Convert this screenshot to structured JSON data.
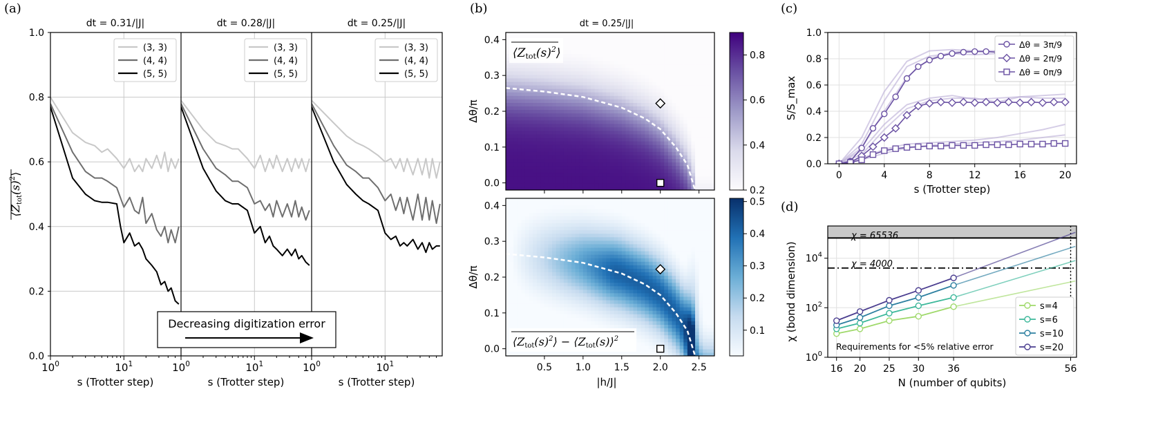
{
  "panel_labels": [
    "(a)",
    "(b)",
    "(c)",
    "(d)"
  ],
  "chart_data": [
    {
      "id": "a",
      "type": "line",
      "x_scale": "log",
      "xlim": [
        1,
        60
      ],
      "ylim": [
        0.0,
        1.0
      ],
      "ylabel": "⟨Z_tot(s)²⟩",
      "xlabel": "s (Trotter step)",
      "yticks": [
        "0.0",
        "0.2",
        "0.4",
        "0.6",
        "0.8",
        "1.0"
      ],
      "xtick_major": [
        "10^0",
        "10^1"
      ],
      "arrow_text": "Decreasing digitization error",
      "legend": [
        "(3, 3)",
        "(4, 4)",
        "(5, 5)"
      ],
      "series_colors": [
        "#c8c8c8",
        "#6e6e6e",
        "#000000"
      ],
      "subplots": [
        {
          "title": "dt = 0.31/|J|",
          "series": [
            {
              "name": "(3, 3)",
              "x": [
                1,
                2,
                3,
                4,
                5,
                6,
                8,
                10,
                12,
                14,
                16,
                18,
                20,
                24,
                28,
                32,
                36,
                40,
                44,
                50,
                56
              ],
              "y": [
                0.8,
                0.69,
                0.66,
                0.65,
                0.63,
                0.64,
                0.61,
                0.58,
                0.61,
                0.57,
                0.59,
                0.57,
                0.61,
                0.58,
                0.62,
                0.58,
                0.63,
                0.57,
                0.61,
                0.58,
                0.61
              ]
            },
            {
              "name": "(4, 4)",
              "x": [
                1,
                2,
                3,
                4,
                5,
                6,
                8,
                10,
                12,
                14,
                16,
                18,
                20,
                24,
                28,
                32,
                36,
                40,
                44,
                50,
                56
              ],
              "y": [
                0.78,
                0.63,
                0.57,
                0.55,
                0.55,
                0.54,
                0.52,
                0.46,
                0.49,
                0.45,
                0.44,
                0.49,
                0.41,
                0.44,
                0.39,
                0.37,
                0.4,
                0.35,
                0.39,
                0.35,
                0.4
              ]
            },
            {
              "name": "(5, 5)",
              "x": [
                1,
                2,
                3,
                4,
                5,
                6,
                8,
                9,
                10,
                12,
                14,
                16,
                18,
                20,
                24,
                28,
                32,
                36,
                40,
                44,
                50,
                56
              ],
              "y": [
                0.77,
                0.55,
                0.5,
                0.48,
                0.475,
                0.475,
                0.47,
                0.4,
                0.35,
                0.38,
                0.34,
                0.35,
                0.33,
                0.3,
                0.28,
                0.26,
                0.22,
                0.23,
                0.2,
                0.21,
                0.17,
                0.16
              ]
            }
          ]
        },
        {
          "title": "dt = 0.28/|J|",
          "series": [
            {
              "name": "(3, 3)",
              "x": [
                1,
                2,
                3,
                4,
                5,
                6,
                8,
                10,
                12,
                14,
                16,
                18,
                20,
                24,
                28,
                32,
                36,
                40,
                44,
                50,
                56
              ],
              "y": [
                0.79,
                0.7,
                0.66,
                0.65,
                0.64,
                0.64,
                0.61,
                0.58,
                0.62,
                0.57,
                0.61,
                0.58,
                0.62,
                0.57,
                0.61,
                0.57,
                0.61,
                0.58,
                0.61,
                0.57,
                0.61
              ]
            },
            {
              "name": "(4, 4)",
              "x": [
                1,
                2,
                3,
                4,
                5,
                6,
                8,
                10,
                12,
                14,
                16,
                18,
                20,
                24,
                28,
                32,
                36,
                40,
                44,
                50,
                56
              ],
              "y": [
                0.78,
                0.64,
                0.58,
                0.56,
                0.54,
                0.54,
                0.52,
                0.47,
                0.48,
                0.45,
                0.47,
                0.43,
                0.48,
                0.43,
                0.47,
                0.43,
                0.48,
                0.43,
                0.46,
                0.42,
                0.45
              ]
            },
            {
              "name": "(5, 5)",
              "x": [
                1,
                2,
                3,
                4,
                5,
                6,
                8,
                10,
                12,
                14,
                16,
                18,
                20,
                24,
                28,
                32,
                36,
                40,
                44,
                50,
                56
              ],
              "y": [
                0.77,
                0.58,
                0.51,
                0.48,
                0.47,
                0.47,
                0.45,
                0.38,
                0.4,
                0.35,
                0.37,
                0.34,
                0.33,
                0.31,
                0.33,
                0.31,
                0.33,
                0.3,
                0.31,
                0.29,
                0.28
              ]
            }
          ]
        },
        {
          "title": "dt = 0.25/|J|",
          "series": [
            {
              "name": "(3, 3)",
              "x": [
                1,
                2,
                3,
                4,
                5,
                6,
                8,
                10,
                12,
                14,
                16,
                18,
                20,
                24,
                28,
                32,
                36,
                40,
                44,
                50,
                56
              ],
              "y": [
                0.79,
                0.72,
                0.68,
                0.66,
                0.65,
                0.64,
                0.62,
                0.6,
                0.61,
                0.58,
                0.61,
                0.57,
                0.61,
                0.56,
                0.61,
                0.56,
                0.61,
                0.55,
                0.61,
                0.55,
                0.6
              ]
            },
            {
              "name": "(4, 4)",
              "x": [
                1,
                2,
                3,
                4,
                5,
                6,
                8,
                10,
                12,
                14,
                16,
                18,
                20,
                24,
                28,
                32,
                36,
                40,
                44,
                50,
                56
              ],
              "y": [
                0.78,
                0.65,
                0.59,
                0.57,
                0.55,
                0.55,
                0.52,
                0.48,
                0.5,
                0.45,
                0.49,
                0.44,
                0.49,
                0.42,
                0.5,
                0.42,
                0.49,
                0.42,
                0.48,
                0.41,
                0.47
              ]
            },
            {
              "name": "(5, 5)",
              "x": [
                1,
                2,
                3,
                4,
                5,
                6,
                8,
                10,
                12,
                14,
                16,
                18,
                20,
                24,
                28,
                32,
                36,
                40,
                44,
                50,
                56
              ],
              "y": [
                0.77,
                0.6,
                0.53,
                0.5,
                0.48,
                0.47,
                0.45,
                0.38,
                0.36,
                0.37,
                0.34,
                0.35,
                0.34,
                0.36,
                0.33,
                0.35,
                0.32,
                0.35,
                0.33,
                0.34,
                0.34
              ]
            }
          ]
        }
      ]
    },
    {
      "id": "b",
      "type": "heatmap",
      "title": "dt = 0.25/|J|",
      "xlabel": "|h/J|",
      "ylabel": "Δθ/π",
      "xlim": [
        0.0,
        2.7
      ],
      "ylim": [
        -0.02,
        0.42
      ],
      "xticks": [
        "0.5",
        "1.0",
        "1.5",
        "2.0",
        "2.5"
      ],
      "yticks": [
        "0.0",
        "0.1",
        "0.2",
        "0.3",
        "0.4"
      ],
      "boundary_curve": {
        "x": [
          0.0,
          0.5,
          1.0,
          1.5,
          1.8,
          2.0,
          2.2,
          2.35,
          2.45
        ],
        "y": [
          0.265,
          0.255,
          0.24,
          0.21,
          0.18,
          0.15,
          0.1,
          0.05,
          -0.02
        ]
      },
      "markers": [
        {
          "shape": "diamond",
          "x": 2.0,
          "y": 0.222
        },
        {
          "shape": "square",
          "x": 2.0,
          "y": 0.0
        }
      ],
      "top": {
        "label": "⟨Z_tot(s)²⟩ (time-averaged)",
        "colorbar_ticks": [
          "0.2",
          "0.4",
          "0.6",
          "0.8"
        ],
        "colorbar_range": [
          0.2,
          0.9
        ]
      },
      "bottom": {
        "label": "⟨Z_tot(s)²⟩ − ⟨Z_tot(s)⟩² (time-averaged)",
        "colorbar_ticks": [
          "0.1",
          "0.2",
          "0.3",
          "0.4",
          "0.5"
        ],
        "colorbar_range": [
          0.02,
          0.51
        ]
      }
    },
    {
      "id": "c",
      "type": "line",
      "xlabel": "s (Trotter step)",
      "ylabel": "S/S_max",
      "xlim": [
        -1,
        21
      ],
      "ylim": [
        0.0,
        1.0
      ],
      "xticks": [
        "0",
        "4",
        "8",
        "12",
        "16",
        "20"
      ],
      "yticks": [
        "0.0",
        "0.2",
        "0.4",
        "0.6",
        "0.8",
        "1.0"
      ],
      "legend": [
        "Δθ = 3π/9",
        "Δθ = 2π/9",
        "Δθ = 0π/9"
      ],
      "series": [
        {
          "name": "Δθ = 3π/9",
          "marker": "circle",
          "x": [
            0,
            1,
            2,
            3,
            4,
            5,
            6,
            7,
            8,
            9,
            10,
            11,
            12,
            13,
            14,
            15,
            16,
            17,
            18,
            19,
            20
          ],
          "y": [
            0.0,
            0.02,
            0.12,
            0.27,
            0.38,
            0.51,
            0.65,
            0.74,
            0.79,
            0.82,
            0.84,
            0.85,
            0.855,
            0.855,
            0.85,
            0.845,
            0.85,
            0.845,
            0.845,
            0.85,
            0.85
          ]
        },
        {
          "name": "Δθ = 2π/9",
          "marker": "diamond",
          "x": [
            0,
            1,
            2,
            3,
            4,
            5,
            6,
            7,
            8,
            9,
            10,
            11,
            12,
            13,
            14,
            15,
            16,
            17,
            18,
            19,
            20
          ],
          "y": [
            0.0,
            0.01,
            0.06,
            0.13,
            0.2,
            0.27,
            0.37,
            0.44,
            0.46,
            0.47,
            0.465,
            0.47,
            0.465,
            0.47,
            0.465,
            0.47,
            0.465,
            0.47,
            0.465,
            0.47,
            0.47
          ]
        },
        {
          "name": "Δθ = 0π/9",
          "marker": "square",
          "x": [
            0,
            1,
            2,
            3,
            4,
            5,
            6,
            7,
            8,
            9,
            10,
            11,
            12,
            13,
            14,
            15,
            16,
            17,
            18,
            19,
            20
          ],
          "y": [
            0.0,
            0.01,
            0.03,
            0.07,
            0.1,
            0.115,
            0.125,
            0.13,
            0.135,
            0.135,
            0.14,
            0.14,
            0.14,
            0.145,
            0.145,
            0.145,
            0.15,
            0.15,
            0.15,
            0.155,
            0.155
          ]
        }
      ],
      "faint_series": [
        {
          "x": [
            0,
            2,
            4,
            6,
            8,
            10,
            12,
            14,
            16,
            18,
            20
          ],
          "y": [
            0,
            0.15,
            0.48,
            0.74,
            0.82,
            0.84,
            0.83,
            0.84,
            0.82,
            0.8,
            0.79
          ]
        },
        {
          "x": [
            0,
            2,
            4,
            6,
            8,
            10,
            12,
            14,
            16,
            18,
            20
          ],
          "y": [
            0,
            0.2,
            0.55,
            0.78,
            0.86,
            0.87,
            0.86,
            0.86,
            0.85,
            0.85,
            0.86
          ]
        },
        {
          "x": [
            0,
            2,
            4,
            6,
            8,
            10,
            12,
            14,
            16,
            18,
            20
          ],
          "y": [
            0,
            0.12,
            0.4,
            0.66,
            0.8,
            0.85,
            0.86,
            0.85,
            0.86,
            0.85,
            0.85
          ]
        },
        {
          "x": [
            0,
            2,
            4,
            6,
            8,
            10,
            12,
            14,
            16,
            18,
            20
          ],
          "y": [
            0,
            0.1,
            0.3,
            0.45,
            0.5,
            0.52,
            0.49,
            0.5,
            0.51,
            0.5,
            0.5
          ]
        },
        {
          "x": [
            0,
            2,
            4,
            6,
            8,
            10,
            12,
            14,
            16,
            18,
            20
          ],
          "y": [
            0,
            0.07,
            0.26,
            0.42,
            0.48,
            0.5,
            0.5,
            0.47,
            0.51,
            0.52,
            0.53
          ]
        },
        {
          "x": [
            0,
            2,
            4,
            6,
            8,
            10,
            12,
            14,
            16,
            18,
            20
          ],
          "y": [
            0,
            0.04,
            0.11,
            0.15,
            0.16,
            0.17,
            0.18,
            0.2,
            0.23,
            0.26,
            0.3
          ]
        },
        {
          "x": [
            0,
            2,
            4,
            6,
            8,
            10,
            12,
            14,
            16,
            18,
            20
          ],
          "y": [
            0,
            0.03,
            0.08,
            0.12,
            0.14,
            0.15,
            0.16,
            0.17,
            0.18,
            0.2,
            0.22
          ]
        }
      ]
    },
    {
      "id": "d",
      "type": "line",
      "y_scale": "log",
      "xlabel": "N (number of qubits)",
      "ylabel": "χ (bond dimension)",
      "xlim": [
        14.5,
        57
      ],
      "ylim_log10": [
        0,
        5.3
      ],
      "xticks": [
        16,
        20,
        25,
        30,
        36,
        56
      ],
      "yticks": [
        "10^0",
        "10^2",
        "10^4"
      ],
      "hline_solid": {
        "value": 65536,
        "label": "χ = 65536"
      },
      "hline_dashdot": {
        "value": 4000,
        "label": "χ = 4000"
      },
      "vline_dotted": 56,
      "annotation": "Requirements for <5% relative error",
      "legend": [
        "s=4",
        "s=6",
        "s=10",
        "s=20"
      ],
      "series": [
        {
          "name": "s=4",
          "color": "#9fd96a",
          "x": [
            16,
            20,
            25,
            30,
            36
          ],
          "y": [
            9,
            14,
            30,
            45,
            110
          ],
          "fit_end": 1200
        },
        {
          "name": "s=6",
          "color": "#3cb89a",
          "x": [
            16,
            20,
            25,
            30,
            36
          ],
          "y": [
            14,
            24,
            60,
            120,
            260
          ],
          "fit_end": 8000
        },
        {
          "name": "s=10",
          "color": "#2c7fa0",
          "x": [
            16,
            20,
            25,
            30,
            36
          ],
          "y": [
            20,
            40,
            120,
            260,
            800
          ],
          "fit_end": 30000
        },
        {
          "name": "s=20",
          "color": "#4a3d8f",
          "x": [
            16,
            20,
            25,
            30,
            36
          ],
          "y": [
            30,
            70,
            200,
            500,
            1600
          ],
          "fit_end": 110000
        }
      ]
    }
  ]
}
